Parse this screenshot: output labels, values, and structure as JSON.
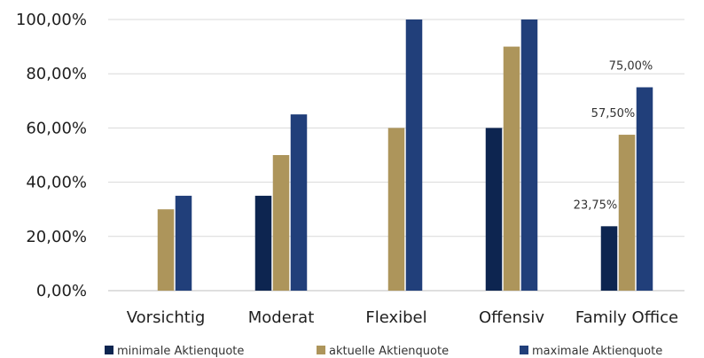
{
  "chart_data": {
    "type": "bar",
    "categories": [
      "Vorsichtig",
      "Moderat",
      "Flexibel",
      "Offensiv",
      "Family Office"
    ],
    "series": [
      {
        "name": "minimale Aktienquote",
        "values": [
          0,
          35,
          0,
          60,
          23.75
        ],
        "color": "#0d2550"
      },
      {
        "name": "aktuelle Aktienquote",
        "values": [
          30,
          50,
          60,
          90,
          57.5
        ],
        "color": "#ad955b"
      },
      {
        "name": "maximale Aktienquote",
        "values": [
          35,
          65,
          100,
          100,
          75
        ],
        "color": "#213f7a"
      }
    ],
    "y_ticks": [
      "0,00%",
      "20,00%",
      "40,00%",
      "60,00%",
      "80,00%",
      "100,00%"
    ],
    "data_labels": [
      {
        "series": 0,
        "category": 4,
        "text": "23,75%"
      },
      {
        "series": 1,
        "category": 4,
        "text": "57,50%"
      },
      {
        "series": 2,
        "category": 4,
        "text": "75,00%"
      }
    ],
    "ylim": [
      0,
      100
    ],
    "grid": true,
    "legend_position": "bottom",
    "title": "",
    "xlabel": "",
    "ylabel": ""
  }
}
